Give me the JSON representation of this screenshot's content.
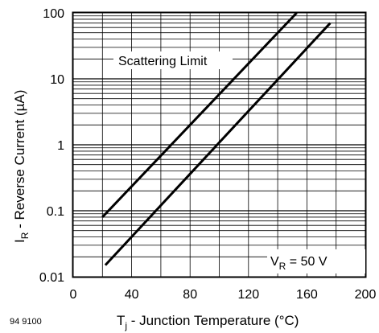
{
  "chart_data": {
    "type": "line",
    "y_scale": "log",
    "xlabel": {
      "main": "T",
      "sub": "j",
      "rest": " - Junction Temperature (°C)"
    },
    "ylabel": {
      "main": "I",
      "sub": "R",
      "rest": " - Reverse Current (µA)"
    },
    "xlim": [
      0,
      200
    ],
    "ylim": [
      0.01,
      100
    ],
    "x_ticks": [
      0,
      40,
      80,
      120,
      160,
      200
    ],
    "x_tick_labels": [
      "0",
      "40",
      "80",
      "120",
      "160",
      "200"
    ],
    "y_ticks": [
      0.01,
      0.1,
      1,
      10,
      100
    ],
    "y_tick_labels": [
      "0.01",
      "0.1",
      "1",
      "10",
      "100"
    ],
    "grid": true,
    "series": [
      {
        "x": [
          20,
          153
        ],
        "y": [
          0.08,
          100
        ]
      },
      {
        "x": [
          22,
          176
        ],
        "y": [
          0.015,
          70
        ]
      }
    ],
    "annotations": {
      "scattering": "Scattering Limit",
      "vr": {
        "main": "V",
        "sub": "R",
        "rest": " = 50 V"
      }
    },
    "figure_code": "94 9100"
  }
}
